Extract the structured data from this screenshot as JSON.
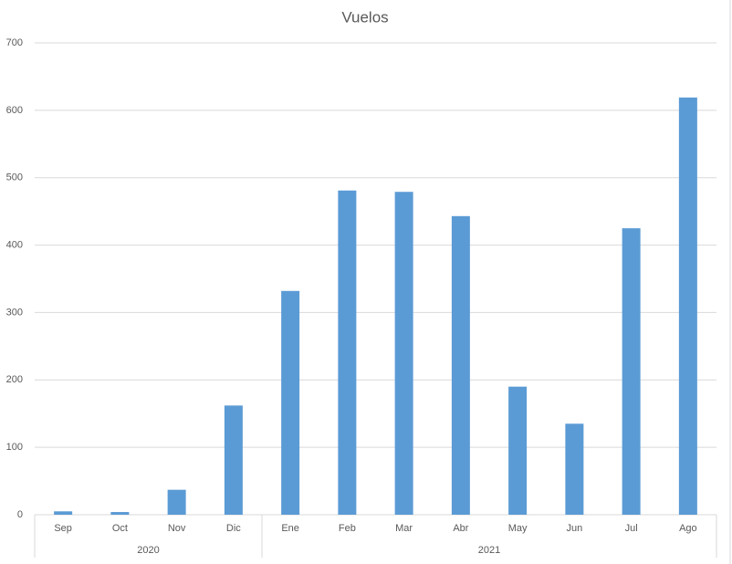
{
  "chart_data": {
    "type": "bar",
    "title": "Vuelos",
    "groups": [
      {
        "name": "2020",
        "categories": [
          "Sep",
          "Oct",
          "Nov",
          "Dic"
        ]
      },
      {
        "name": "2021",
        "categories": [
          "Ene",
          "Feb",
          "Mar",
          "Abr",
          "May",
          "Jun",
          "Jul",
          "Ago"
        ]
      }
    ],
    "values": [
      5,
      4,
      37,
      162,
      332,
      481,
      479,
      443,
      190,
      135,
      425,
      619
    ],
    "color": "#5b9bd5",
    "ylim": [
      0,
      700
    ],
    "yticks": [
      0,
      100,
      200,
      300,
      400,
      500,
      600,
      700
    ],
    "grid": true
  }
}
